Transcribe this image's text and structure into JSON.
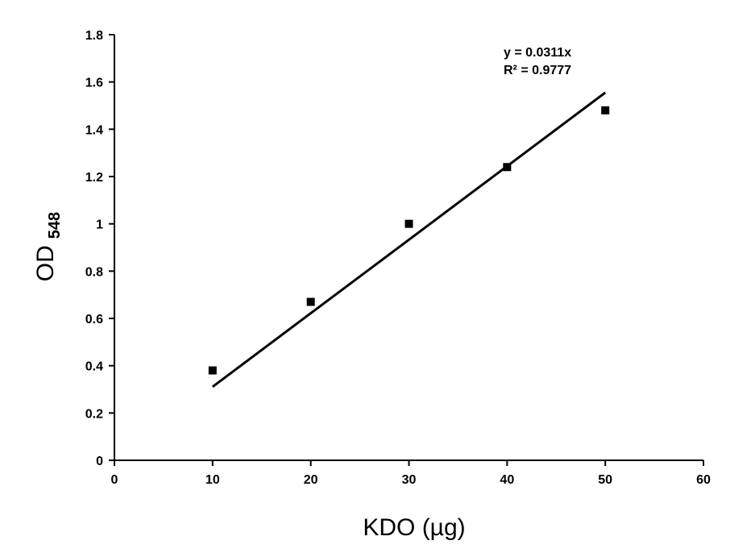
{
  "chart_data": {
    "type": "scatter",
    "title": "",
    "xlabel": "KDO (µg)",
    "ylabel": "OD",
    "ylabel_subscript": "548",
    "xlim": [
      0,
      60
    ],
    "ylim": [
      0,
      1.8
    ],
    "x_ticks": [
      0,
      10,
      20,
      30,
      40,
      50,
      60
    ],
    "x_tick_labels": [
      "0",
      "10",
      "20",
      "30",
      "40",
      "50",
      "60"
    ],
    "y_ticks": [
      0,
      0.2,
      0.4,
      0.6,
      0.8,
      1.0,
      1.2,
      1.4,
      1.6,
      1.8
    ],
    "y_tick_labels": [
      "0",
      "0.2",
      "0.4",
      "0.6",
      "0.8",
      "1",
      "1.2",
      "1.4",
      "1.6",
      "1.8"
    ],
    "grid": false,
    "legend": false,
    "series": [
      {
        "marker": "square",
        "color": "#000000",
        "x": [
          10,
          20,
          30,
          40,
          50
        ],
        "y": [
          0.38,
          0.67,
          1.0,
          1.24,
          1.48
        ]
      }
    ],
    "trendline": {
      "type": "linear-through-origin",
      "slope": 0.0311,
      "x_range": [
        10,
        50
      ],
      "color": "#000000"
    },
    "annotations": {
      "equation": "y = 0.0311x",
      "r_squared": "R² = 0.9777"
    }
  }
}
